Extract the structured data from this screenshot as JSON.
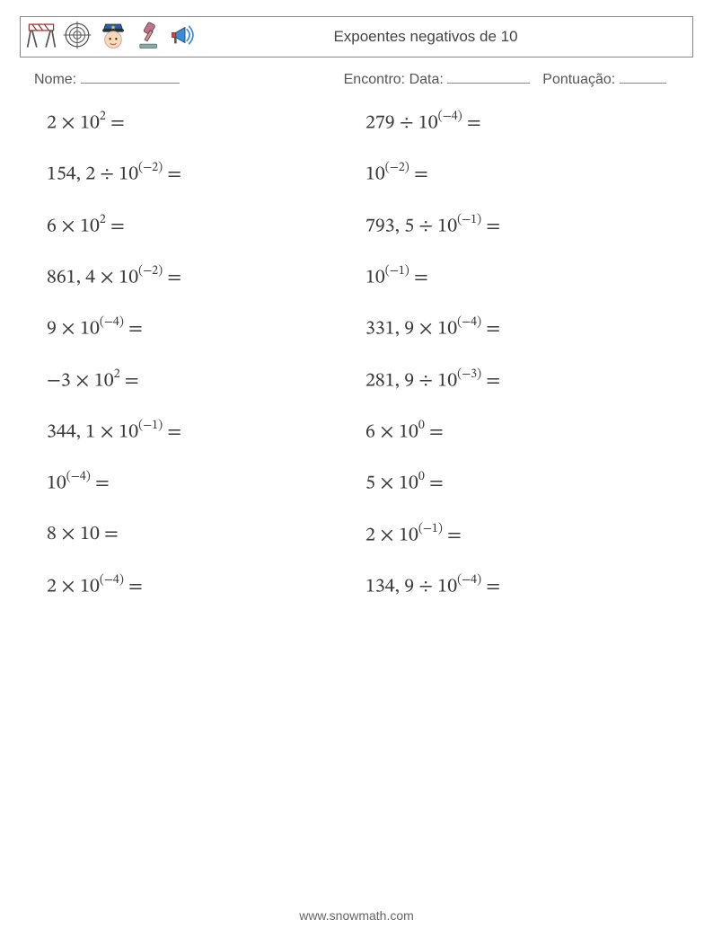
{
  "header": {
    "title": "Expoentes negativos de 10"
  },
  "meta": {
    "name_label": "Nome:",
    "encontro_label": "Encontro:",
    "data_label": "Data:",
    "pontuacao_label": "Pontuação:",
    "blank_widths": {
      "name": 110,
      "data": 92,
      "pontuacao": 52
    }
  },
  "problems": {
    "left": [
      {
        "a": "2",
        "op": "×",
        "base": "10",
        "exp": "2",
        "expParen": false
      },
      {
        "a": "154, 2",
        "op": "÷",
        "base": "10",
        "exp": "−2",
        "expParen": true
      },
      {
        "a": "6",
        "op": "×",
        "base": "10",
        "exp": "2",
        "expParen": false
      },
      {
        "a": "861, 4",
        "op": "×",
        "base": "10",
        "exp": "−2",
        "expParen": true
      },
      {
        "a": "9",
        "op": "×",
        "base": "10",
        "exp": "−4",
        "expParen": true
      },
      {
        "a": "−3",
        "op": "×",
        "base": "10",
        "exp": "2",
        "expParen": false
      },
      {
        "a": "344, 1",
        "op": "×",
        "base": "10",
        "exp": "−1",
        "expParen": true
      },
      {
        "a": "",
        "op": "",
        "base": "10",
        "exp": "−4",
        "expParen": true
      },
      {
        "a": "8",
        "op": "×",
        "base": "10",
        "exp": "",
        "expParen": false
      },
      {
        "a": "2",
        "op": "×",
        "base": "10",
        "exp": "−4",
        "expParen": true
      }
    ],
    "right": [
      {
        "a": "279",
        "op": "÷",
        "base": "10",
        "exp": "−4",
        "expParen": true
      },
      {
        "a": "",
        "op": "",
        "base": "10",
        "exp": "−2",
        "expParen": true
      },
      {
        "a": "793, 5",
        "op": "÷",
        "base": "10",
        "exp": "−1",
        "expParen": true
      },
      {
        "a": "",
        "op": "",
        "base": "10",
        "exp": "−1",
        "expParen": true
      },
      {
        "a": "331, 9",
        "op": "×",
        "base": "10",
        "exp": "−4",
        "expParen": true
      },
      {
        "a": "281, 9",
        "op": "÷",
        "base": "10",
        "exp": "−3",
        "expParen": true
      },
      {
        "a": "6",
        "op": "×",
        "base": "10",
        "exp": "0",
        "expParen": false
      },
      {
        "a": "5",
        "op": "×",
        "base": "10",
        "exp": "0",
        "expParen": false
      },
      {
        "a": "2",
        "op": "×",
        "base": "10",
        "exp": "−1",
        "expParen": true
      },
      {
        "a": "134, 9",
        "op": "÷",
        "base": "10",
        "exp": "−4",
        "expParen": true
      }
    ]
  },
  "footer": {
    "text": "www.snowmath.com"
  },
  "icons": {
    "names": [
      "hurdle-icon",
      "target-icon",
      "police-icon",
      "gavel-icon",
      "megaphone-icon"
    ]
  }
}
